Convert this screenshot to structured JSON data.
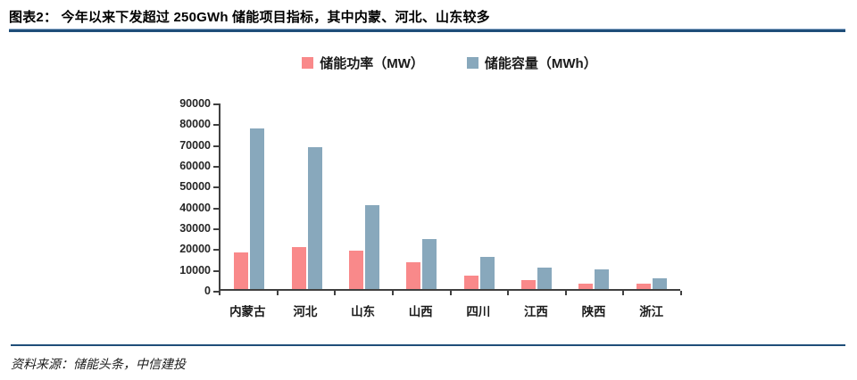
{
  "header": {
    "title": "图表2：  今年以来下发超过 250GWh 储能项目指标，其中内蒙、河北、山东较多"
  },
  "footer": {
    "source_label": "资料来源：储能头条，中信建投"
  },
  "colors": {
    "power_bar": "#F9898A",
    "capacity_bar": "#88A8BC",
    "rule_navy": "#1F4E79",
    "axis": "#404040"
  },
  "chart_data": {
    "type": "bar",
    "title": "",
    "categories": [
      "内蒙古",
      "河北",
      "山东",
      "山西",
      "四川",
      "江西",
      "陕西",
      "浙江"
    ],
    "series": [
      {
        "name": "储能功率（MW）",
        "color": "#F9898A",
        "values": [
          17700,
          20300,
          18400,
          12900,
          6300,
          4400,
          2500,
          2800
        ]
      },
      {
        "name": "储能容量（MWh）",
        "color": "#88A8BC",
        "values": [
          77900,
          68600,
          40800,
          24100,
          15500,
          10200,
          9400,
          5300
        ]
      }
    ],
    "xlabel": "",
    "ylabel": "",
    "ylim": [
      0,
      90000
    ],
    "ytick_step": 10000,
    "ytick_labels_top_to_bottom": [
      "90000",
      "80000",
      "70000",
      "60000",
      "50000",
      "40000",
      "30000",
      "20000",
      "10000",
      "0"
    ],
    "legend_position": "top",
    "grid": false
  }
}
